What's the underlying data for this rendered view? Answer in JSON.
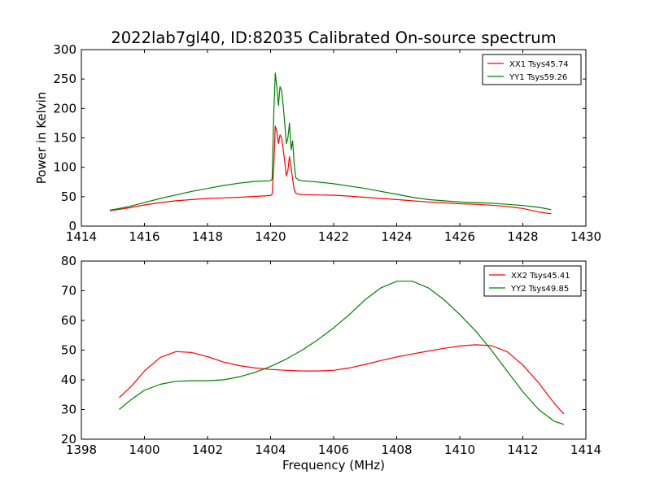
{
  "figure": {
    "title": "2022lab7gl40, ID:82035 Calibrated On-source spectrum"
  },
  "chart_data": [
    {
      "type": "line",
      "title": "2022lab7gl40, ID:82035 Calibrated On-source spectrum",
      "xlabel": "",
      "ylabel": "Power in Kelvin",
      "xlim": [
        1414,
        1430
      ],
      "ylim": [
        0,
        300
      ],
      "xticks": [
        "1414",
        "1416",
        "1418",
        "1420",
        "1422",
        "1424",
        "1426",
        "1428",
        "1430"
      ],
      "yticks": [
        "0",
        "50",
        "100",
        "150",
        "200",
        "250",
        "300"
      ],
      "grid": false,
      "legend_position": "top-right",
      "series": [
        {
          "name": "XX1 Tsys45.74",
          "color": "#ff0000",
          "x": [
            1414.9,
            1415.5,
            1416.0,
            1416.5,
            1417.0,
            1417.5,
            1418.0,
            1418.5,
            1419.0,
            1419.5,
            1420.0,
            1420.05,
            1420.1,
            1420.15,
            1420.2,
            1420.25,
            1420.3,
            1420.35,
            1420.4,
            1420.45,
            1420.5,
            1420.55,
            1420.6,
            1420.65,
            1420.7,
            1420.75,
            1420.8,
            1420.9,
            1421.0,
            1421.5,
            1422.0,
            1422.5,
            1423.0,
            1423.5,
            1424.0,
            1424.5,
            1425.0,
            1425.5,
            1426.0,
            1426.5,
            1427.0,
            1427.5,
            1428.0,
            1428.5,
            1428.9
          ],
          "y": [
            26,
            31,
            36,
            40,
            43,
            45,
            47,
            48,
            49,
            50.5,
            52,
            54,
            100,
            170,
            160,
            140,
            155,
            150,
            130,
            110,
            85,
            95,
            118,
            100,
            80,
            62,
            56,
            54,
            53.5,
            53,
            52.5,
            51,
            49,
            47,
            45,
            43,
            41,
            39.5,
            38,
            37,
            35.5,
            33.5,
            30,
            24,
            21
          ]
        },
        {
          "name": "YY1 Tsys59.26",
          "color": "#008000",
          "x": [
            1414.9,
            1415.5,
            1416.0,
            1416.5,
            1417.0,
            1417.5,
            1418.0,
            1418.5,
            1419.0,
            1419.5,
            1420.0,
            1420.05,
            1420.1,
            1420.15,
            1420.2,
            1420.25,
            1420.3,
            1420.35,
            1420.4,
            1420.45,
            1420.5,
            1420.55,
            1420.6,
            1420.65,
            1420.7,
            1420.75,
            1420.8,
            1420.9,
            1421.0,
            1421.5,
            1422.0,
            1422.5,
            1423.0,
            1423.5,
            1424.0,
            1424.5,
            1425.0,
            1425.5,
            1426.0,
            1426.5,
            1427.0,
            1427.5,
            1428.0,
            1428.5,
            1428.9
          ],
          "y": [
            27,
            33,
            40,
            47,
            53,
            59,
            64,
            69,
            73,
            76,
            77,
            80,
            190,
            260,
            235,
            205,
            237,
            230,
            205,
            175,
            140,
            150,
            175,
            130,
            145,
            105,
            82,
            78,
            77,
            75,
            72,
            68,
            64,
            59,
            54,
            49,
            45,
            43,
            41,
            40,
            39,
            37,
            35,
            32,
            28
          ]
        }
      ]
    },
    {
      "type": "line",
      "title": "",
      "xlabel": "Frequency (MHz)",
      "ylabel": "",
      "xlim": [
        1398,
        1414
      ],
      "ylim": [
        20,
        80
      ],
      "xticks": [
        "1398",
        "1400",
        "1402",
        "1404",
        "1406",
        "1408",
        "1410",
        "1412",
        "1414"
      ],
      "yticks": [
        "20",
        "30",
        "40",
        "50",
        "60",
        "70",
        "80"
      ],
      "grid": false,
      "legend_position": "top-right",
      "series": [
        {
          "name": "XX2 Tsys45.41",
          "color": "#ff0000",
          "x": [
            1399.2,
            1399.6,
            1400.0,
            1400.5,
            1401.0,
            1401.5,
            1402.0,
            1402.5,
            1403.0,
            1403.5,
            1404.0,
            1404.5,
            1405.0,
            1405.5,
            1406.0,
            1406.5,
            1407.0,
            1407.5,
            1408.0,
            1408.5,
            1409.0,
            1409.5,
            1410.0,
            1410.5,
            1411.0,
            1411.5,
            1412.0,
            1412.5,
            1413.0,
            1413.3
          ],
          "y": [
            34,
            38,
            43,
            47.5,
            49.5,
            49.2,
            47.8,
            46,
            44.8,
            44,
            43.5,
            43.2,
            43,
            43,
            43.2,
            44,
            45.2,
            46.5,
            47.7,
            48.7,
            49.7,
            50.6,
            51.4,
            51.8,
            51.5,
            49.5,
            45,
            39,
            32,
            28.5
          ]
        },
        {
          "name": "YY2 Tsys49.85",
          "color": "#008000",
          "x": [
            1399.2,
            1399.6,
            1400.0,
            1400.5,
            1401.0,
            1401.5,
            1402.0,
            1402.5,
            1403.0,
            1403.5,
            1404.0,
            1404.5,
            1405.0,
            1405.5,
            1406.0,
            1406.5,
            1407.0,
            1407.5,
            1408.0,
            1408.5,
            1409.0,
            1409.5,
            1410.0,
            1410.5,
            1411.0,
            1411.5,
            1412.0,
            1412.5,
            1413.0,
            1413.3
          ],
          "y": [
            30,
            33.5,
            36.5,
            38.5,
            39.5,
            39.7,
            39.7,
            40,
            41,
            42.5,
            44.5,
            47,
            50,
            53.5,
            57.5,
            62,
            67,
            71,
            73.2,
            73.2,
            71,
            67,
            62,
            56.5,
            50,
            43,
            36,
            30,
            26,
            25
          ]
        }
      ]
    }
  ]
}
